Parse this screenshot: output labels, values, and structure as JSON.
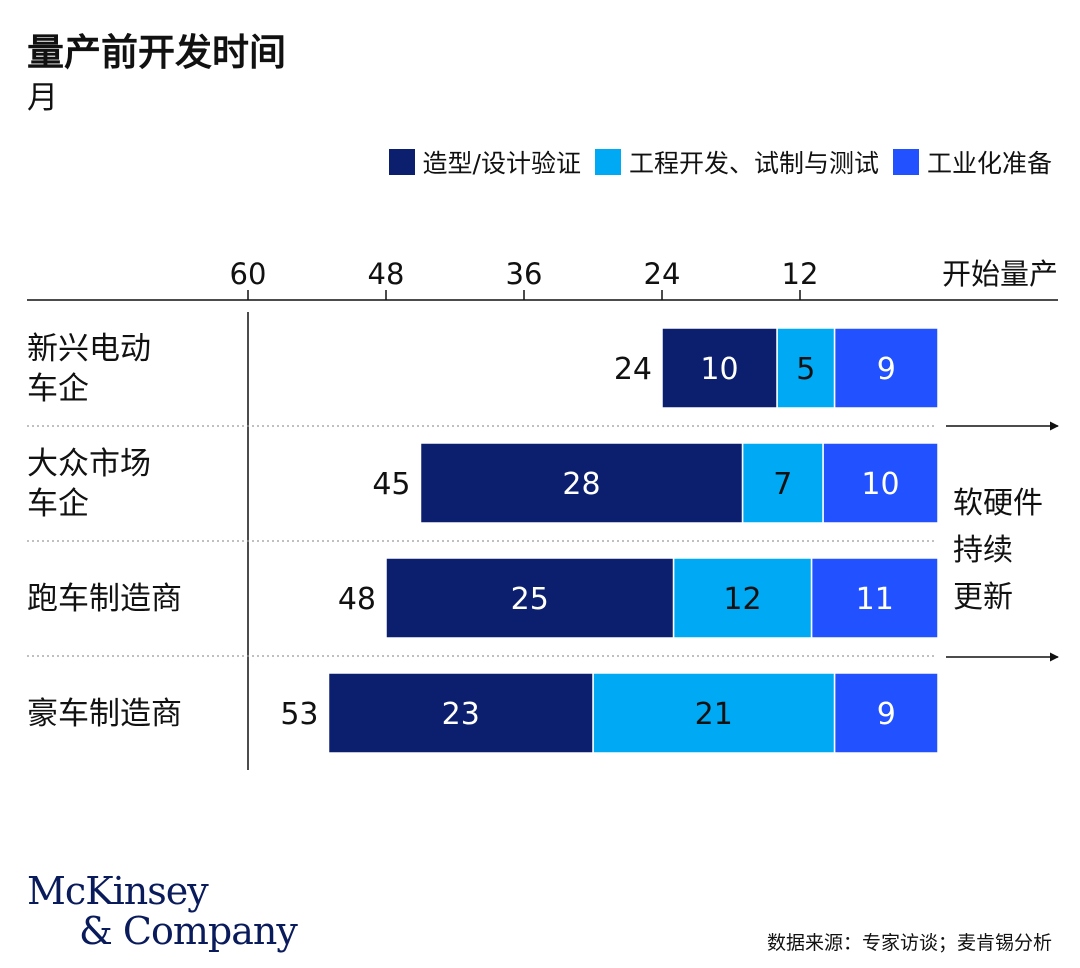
{
  "title": "量产前开发时间",
  "subtitle": "月",
  "chart_data": {
    "type": "bar",
    "orientation": "horizontal",
    "stacked": true,
    "x_axis": {
      "reversed": true,
      "range": [
        60,
        0
      ],
      "ticks": [
        60,
        48,
        36,
        24,
        12
      ],
      "end_label": "开始量产",
      "position": "top"
    },
    "categories": [
      [
        "新兴电动",
        "车企"
      ],
      [
        "大众市场",
        "车企"
      ],
      [
        "跑车制造商"
      ],
      [
        "豪车制造商"
      ]
    ],
    "totals": [
      24,
      45,
      48,
      53
    ],
    "series": [
      {
        "name": "造型/设计验证",
        "color": "#0b1f6e",
        "values": [
          10,
          28,
          25,
          23
        ]
      },
      {
        "name": "工程开发、试制与测试",
        "color": "#00a9f4",
        "values": [
          5,
          7,
          12,
          21
        ]
      },
      {
        "name": "工业化准备",
        "color": "#2251ff",
        "values": [
          9,
          10,
          11,
          9
        ]
      }
    ],
    "annotation": [
      "软硬件",
      "持续",
      "更新"
    ],
    "legend_position": "top-right",
    "grid": false
  },
  "logo": {
    "line1": "McKinsey",
    "line2": "& Company"
  },
  "source": "数据来源：专家访谈；麦肯锡分析"
}
